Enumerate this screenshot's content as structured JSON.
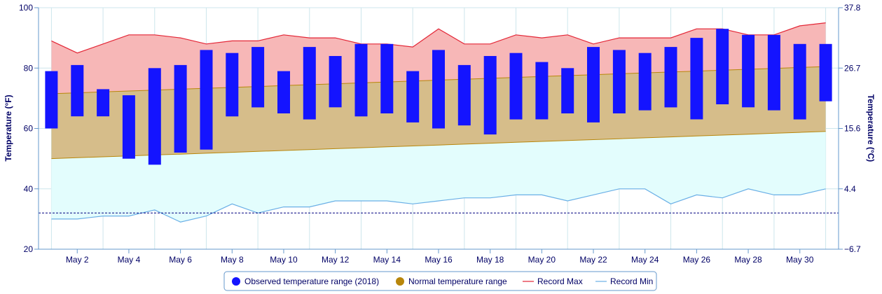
{
  "chart_data": {
    "type": "bar",
    "y_axis_left": {
      "label": "Temperature (°F)",
      "ticks": [
        20,
        40,
        60,
        80,
        100
      ],
      "range": [
        20,
        100
      ]
    },
    "y_axis_right": {
      "label": "Temperature (°C)",
      "ticks": [
        "−6.7",
        "4.4",
        "15.6",
        "26.7",
        "37.8"
      ]
    },
    "x_axis": {
      "range": [
        1,
        31
      ],
      "tick_labels": [
        "May 2",
        "May 4",
        "May 6",
        "May 8",
        "May 10",
        "May 12",
        "May 14",
        "May 16",
        "May 18",
        "May 20",
        "May 22",
        "May 24",
        "May 26",
        "May 28",
        "May 30"
      ],
      "tick_days": [
        2,
        4,
        6,
        8,
        10,
        12,
        14,
        16,
        18,
        20,
        22,
        24,
        26,
        28,
        30
      ]
    },
    "freezing_line": 32,
    "grid": true,
    "legend_position": "bottom-center",
    "colors": {
      "observed": "#1414ff",
      "normal_fill": "#d6bd8a",
      "normal_marker": "#b8860b",
      "normal_line": "#b8860b",
      "record_max_line": "#e32636",
      "record_max_fill": "#f7b7b7",
      "record_min_line": "#6aafe6",
      "record_min_fill": "#e3fdfd",
      "freezing": "#000080",
      "grid": "#cde6ec",
      "axis": "#6699cc"
    },
    "days": [
      1,
      2,
      3,
      4,
      5,
      6,
      7,
      8,
      9,
      10,
      11,
      12,
      13,
      14,
      15,
      16,
      17,
      18,
      19,
      20,
      21,
      22,
      23,
      24,
      25,
      26,
      27,
      28,
      29,
      30,
      31
    ],
    "series": [
      {
        "name": "Observed temperature range (2018)",
        "low": [
          60,
          64,
          64,
          50,
          48,
          52,
          53,
          64,
          67,
          65,
          63,
          67,
          64,
          65,
          62,
          60,
          61,
          58,
          63,
          63,
          65,
          62,
          65,
          66,
          67,
          63,
          68,
          67,
          66,
          63,
          69
        ],
        "high": [
          79,
          81,
          73,
          71,
          80,
          81,
          86,
          85,
          87,
          79,
          87,
          84,
          88,
          88,
          79,
          86,
          81,
          84,
          85,
          82,
          80,
          87,
          86,
          85,
          87,
          90,
          93,
          91,
          91,
          88,
          88
        ]
      },
      {
        "name": "Normal temperature range",
        "low": [
          50,
          50.3,
          50.6,
          50.9,
          51.2,
          51.5,
          51.8,
          52.1,
          52.4,
          52.7,
          53,
          53.3,
          53.6,
          53.9,
          54.2,
          54.5,
          54.8,
          55.1,
          55.4,
          55.7,
          56,
          56.3,
          56.6,
          56.9,
          57.2,
          57.5,
          57.8,
          58.1,
          58.4,
          58.7,
          59
        ],
        "high": [
          71.5,
          71.8,
          72.1,
          72.4,
          72.7,
          73,
          73.3,
          73.6,
          73.9,
          74.2,
          74.5,
          74.8,
          75.1,
          75.4,
          75.7,
          76,
          76.3,
          76.6,
          76.9,
          77.2,
          77.5,
          77.8,
          78.1,
          78.4,
          78.7,
          79,
          79.3,
          79.6,
          79.9,
          80.2,
          80.5
        ]
      },
      {
        "name": "Record Max",
        "values": [
          89,
          85,
          88,
          91,
          91,
          90,
          88,
          89,
          89,
          91,
          90,
          90,
          88,
          88,
          87,
          93,
          88,
          88,
          91,
          90,
          91,
          88,
          90,
          90,
          90,
          93,
          93,
          91,
          91,
          94,
          95
        ]
      },
      {
        "name": "Record Min",
        "values": [
          30,
          30,
          31,
          31,
          33,
          29,
          31,
          35,
          32,
          34,
          34,
          36,
          36,
          36,
          35,
          36,
          37,
          37,
          38,
          38,
          36,
          38,
          40,
          40,
          35,
          38,
          37,
          40,
          38,
          38,
          40
        ]
      }
    ]
  }
}
